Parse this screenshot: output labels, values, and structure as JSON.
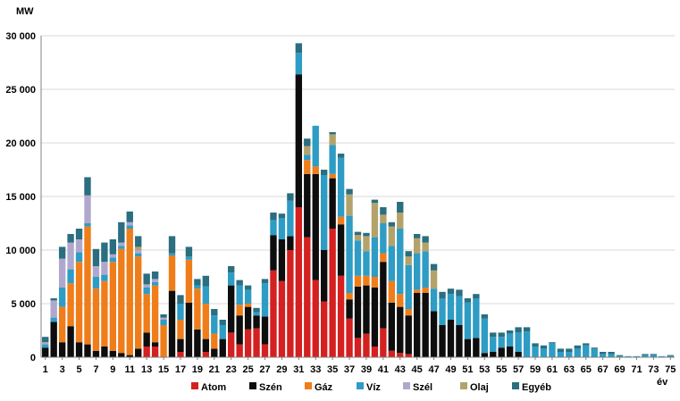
{
  "chart_data": {
    "type": "bar",
    "stacked": true,
    "title": "",
    "ylabel": "MW",
    "xlabel": "év",
    "ylim": [
      0,
      30000
    ],
    "yticks": [
      0,
      5000,
      10000,
      15000,
      20000,
      25000,
      30000
    ],
    "ytick_labels": [
      "0",
      "5 000",
      "10 000",
      "15 000",
      "20 000",
      "25 000",
      "30 000"
    ],
    "xtick_labels": [
      "1",
      "3",
      "5",
      "7",
      "9",
      "11",
      "13",
      "15",
      "17",
      "19",
      "21",
      "23",
      "25",
      "27",
      "29",
      "31",
      "33",
      "35",
      "37",
      "39",
      "41",
      "43",
      "45",
      "47",
      "49",
      "51",
      "53",
      "55",
      "57",
      "59",
      "61",
      "63",
      "65",
      "67",
      "69",
      "71",
      "73",
      "75"
    ],
    "categories": [
      1,
      2,
      3,
      4,
      5,
      6,
      7,
      8,
      9,
      10,
      11,
      12,
      13,
      14,
      15,
      16,
      17,
      18,
      19,
      20,
      21,
      22,
      23,
      24,
      25,
      26,
      27,
      28,
      29,
      30,
      31,
      32,
      33,
      34,
      35,
      36,
      37,
      38,
      39,
      40,
      41,
      42,
      43,
      44,
      45,
      46,
      47,
      48,
      49,
      50,
      51,
      52,
      53,
      54,
      55,
      56,
      57,
      58,
      59,
      60,
      61,
      62,
      63,
      64,
      65,
      66,
      67,
      68,
      69,
      70,
      71,
      72,
      73,
      74,
      75
    ],
    "series": [
      {
        "name": "Atom",
        "color": "#d42020",
        "values": [
          0,
          0,
          0,
          0,
          0,
          0,
          0,
          0,
          0,
          0,
          0,
          0,
          1000,
          1000,
          0,
          0,
          500,
          0,
          0,
          500,
          0,
          0,
          2300,
          1200,
          2600,
          2700,
          1200,
          8100,
          7100,
          10000,
          14000,
          11200,
          7200,
          5200,
          12000,
          7600,
          3600,
          1800,
          2200,
          1000,
          2700,
          600,
          400,
          300,
          0,
          0,
          0,
          0,
          0,
          0,
          0,
          0,
          0,
          0,
          0,
          0,
          0,
          0,
          0,
          0,
          0,
          0,
          0,
          0,
          0,
          0,
          0,
          0,
          0,
          0,
          0,
          0,
          0,
          0,
          0
        ]
      },
      {
        "name": "Szén",
        "color": "#0d0d0d",
        "values": [
          900,
          3300,
          1400,
          2900,
          1400,
          1200,
          600,
          1000,
          600,
          400,
          200,
          800,
          1300,
          400,
          0,
          6200,
          1200,
          5100,
          2600,
          1200,
          800,
          1700,
          4400,
          2700,
          2100,
          1200,
          2600,
          3300,
          3900,
          1300,
          12400,
          5900,
          9900,
          4800,
          4700,
          4800,
          1800,
          4800,
          4500,
          5500,
          6200,
          4500,
          4300,
          3600,
          6000,
          6000,
          4300,
          3000,
          3500,
          3000,
          1700,
          1800,
          400,
          500,
          900,
          1000,
          500,
          0,
          0,
          0,
          0,
          0,
          0,
          0,
          0,
          0,
          0,
          0,
          0,
          0,
          0,
          0,
          0,
          0,
          0
        ]
      },
      {
        "name": "Gáz",
        "color": "#ef7d1a",
        "values": [
          0,
          0,
          3300,
          4000,
          7500,
          11000,
          5800,
          6100,
          8300,
          9700,
          11800,
          8600,
          3600,
          5300,
          3000,
          3300,
          1800,
          4000,
          3800,
          3300,
          1400,
          0,
          0,
          1000,
          300,
          0,
          0,
          0,
          0,
          0,
          0,
          1300,
          700,
          0,
          400,
          700,
          600,
          1000,
          900,
          1000,
          800,
          2000,
          1200,
          600,
          300,
          500,
          0,
          0,
          0,
          0,
          0,
          0,
          0,
          0,
          0,
          0,
          0,
          0,
          0,
          0,
          0,
          0,
          0,
          0,
          0,
          0,
          0,
          0,
          0,
          0,
          0,
          0,
          0,
          0,
          0
        ]
      },
      {
        "name": "Víz",
        "color": "#2e9cc4",
        "values": [
          300,
          400,
          1800,
          1300,
          900,
          300,
          1100,
          600,
          400,
          300,
          300,
          300,
          600,
          300,
          500,
          200,
          1500,
          300,
          300,
          1600,
          1700,
          1300,
          1200,
          1800,
          1300,
          300,
          3100,
          1400,
          2000,
          3300,
          2000,
          500,
          3800,
          7000,
          2700,
          5500,
          7200,
          3300,
          2300,
          3700,
          2800,
          3300,
          6100,
          4100,
          3400,
          3400,
          2100,
          2500,
          2400,
          2700,
          3400,
          3700,
          3200,
          1400,
          1000,
          1200,
          1800,
          2400,
          1000,
          800,
          1300,
          500,
          500,
          800,
          1100,
          800,
          300,
          300,
          100,
          100,
          100,
          200,
          200,
          100,
          100
        ]
      },
      {
        "name": "Szél",
        "color": "#b0a8cc",
        "values": [
          200,
          1600,
          2700,
          2500,
          1200,
          2600,
          1000,
          1200,
          300,
          300,
          300,
          300,
          300,
          300,
          200,
          0,
          0,
          0,
          0,
          0,
          0,
          0,
          0,
          0,
          0,
          0,
          0,
          0,
          0,
          0,
          0,
          0,
          0,
          0,
          0,
          0,
          0,
          0,
          0,
          0,
          0,
          0,
          0,
          0,
          0,
          0,
          0,
          0,
          0,
          0,
          0,
          0,
          0,
          0,
          0,
          0,
          0,
          0,
          0,
          0,
          0,
          0,
          0,
          0,
          0,
          0,
          0,
          0,
          0,
          0,
          0,
          0,
          0,
          0,
          0
        ]
      },
      {
        "name": "Olaj",
        "color": "#b3a36b",
        "values": [
          0,
          0,
          0,
          0,
          0,
          0,
          0,
          0,
          0,
          0,
          0,
          300,
          0,
          0,
          0,
          0,
          0,
          0,
          0,
          0,
          0,
          0,
          0,
          0,
          0,
          0,
          0,
          0,
          0,
          0,
          0,
          800,
          0,
          0,
          1000,
          0,
          2000,
          500,
          1400,
          3200,
          800,
          1800,
          1500,
          800,
          1400,
          800,
          1700,
          0,
          0,
          0,
          0,
          0,
          0,
          0,
          0,
          0,
          0,
          0,
          0,
          0,
          0,
          0,
          0,
          0,
          0,
          0,
          0,
          0,
          0,
          0,
          0,
          0,
          0,
          0,
          0
        ]
      },
      {
        "name": "Egyéb",
        "color": "#2a6e80",
        "values": [
          500,
          200,
          1100,
          800,
          1000,
          1700,
          1600,
          1800,
          1400,
          1900,
          1000,
          1000,
          1000,
          700,
          300,
          1600,
          800,
          900,
          600,
          1000,
          600,
          500,
          600,
          500,
          400,
          400,
          400,
          700,
          400,
          700,
          900,
          700,
          0,
          500,
          200,
          400,
          500,
          300,
          300,
          300,
          700,
          400,
          1000,
          500,
          400,
          600,
          600,
          600,
          500,
          600,
          400,
          400,
          400,
          400,
          400,
          300,
          500,
          400,
          300,
          300,
          100,
          300,
          300,
          300,
          200,
          100,
          200,
          200,
          100,
          0,
          0,
          100,
          100,
          0,
          100
        ]
      }
    ]
  }
}
